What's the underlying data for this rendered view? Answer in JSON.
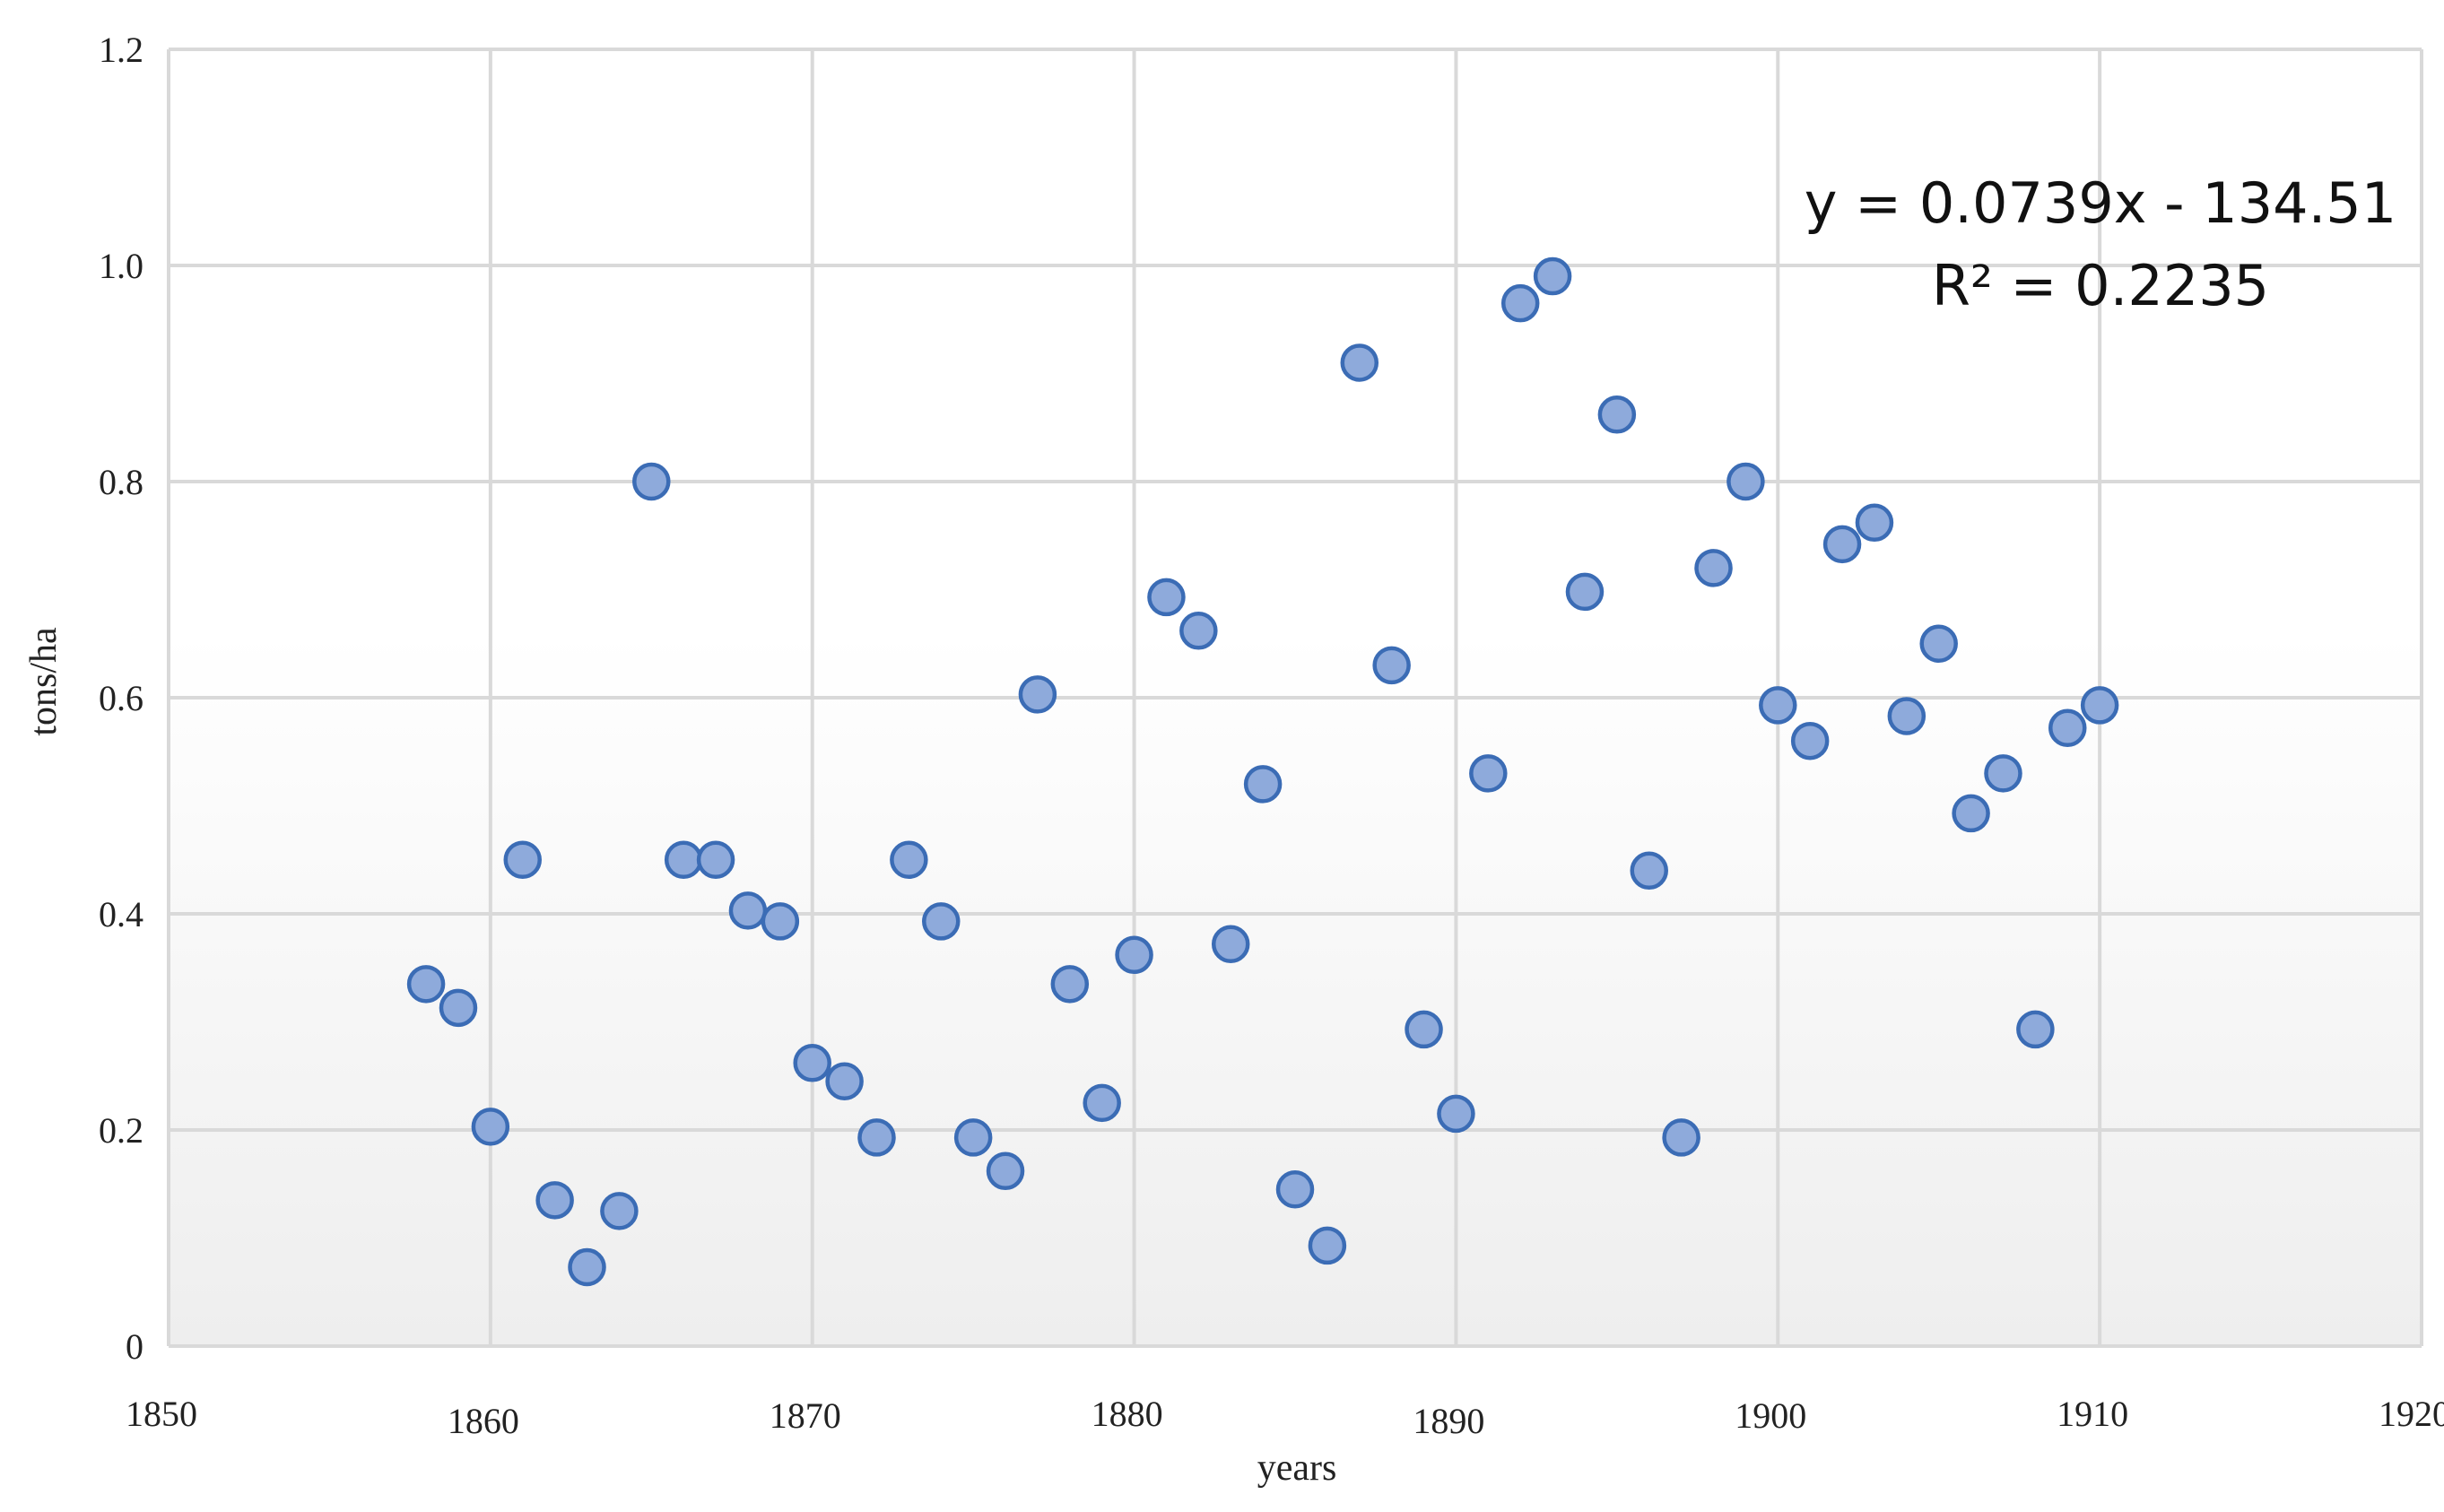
{
  "chart_data": {
    "type": "scatter",
    "xlabel": "years",
    "ylabel": "tons/ha",
    "xlim": [
      1850,
      1920
    ],
    "ylim": [
      0,
      1.2
    ],
    "x_ticks": [
      "1850",
      "1860",
      "1870",
      "1880",
      "1890",
      "1900",
      "1910",
      "1920"
    ],
    "y_ticks": [
      "0",
      "0.2",
      "0.4",
      "0.6",
      "0.8",
      "1.0",
      "1.2"
    ],
    "grid": true,
    "points": [
      {
        "x": 1858,
        "y": 0.335
      },
      {
        "x": 1859,
        "y": 0.313
      },
      {
        "x": 1860,
        "y": 0.203
      },
      {
        "x": 1861,
        "y": 0.45
      },
      {
        "x": 1862,
        "y": 0.135
      },
      {
        "x": 1863,
        "y": 0.073
      },
      {
        "x": 1864,
        "y": 0.125
      },
      {
        "x": 1865,
        "y": 0.8
      },
      {
        "x": 1866,
        "y": 0.45
      },
      {
        "x": 1867,
        "y": 0.45
      },
      {
        "x": 1868,
        "y": 0.403
      },
      {
        "x": 1869,
        "y": 0.393
      },
      {
        "x": 1870,
        "y": 0.262
      },
      {
        "x": 1871,
        "y": 0.245
      },
      {
        "x": 1872,
        "y": 0.193
      },
      {
        "x": 1873,
        "y": 0.45
      },
      {
        "x": 1874,
        "y": 0.393
      },
      {
        "x": 1875,
        "y": 0.193
      },
      {
        "x": 1876,
        "y": 0.162
      },
      {
        "x": 1877,
        "y": 0.603
      },
      {
        "x": 1878,
        "y": 0.335
      },
      {
        "x": 1879,
        "y": 0.225
      },
      {
        "x": 1880,
        "y": 0.362
      },
      {
        "x": 1881,
        "y": 0.693
      },
      {
        "x": 1882,
        "y": 0.662
      },
      {
        "x": 1883,
        "y": 0.372
      },
      {
        "x": 1884,
        "y": 0.52
      },
      {
        "x": 1885,
        "y": 0.145
      },
      {
        "x": 1886,
        "y": 0.093
      },
      {
        "x": 1887,
        "y": 0.91
      },
      {
        "x": 1888,
        "y": 0.63
      },
      {
        "x": 1889,
        "y": 0.293
      },
      {
        "x": 1890,
        "y": 0.215
      },
      {
        "x": 1891,
        "y": 0.53
      },
      {
        "x": 1892,
        "y": 0.965
      },
      {
        "x": 1893,
        "y": 0.99
      },
      {
        "x": 1894,
        "y": 0.698
      },
      {
        "x": 1895,
        "y": 0.862
      },
      {
        "x": 1896,
        "y": 0.44
      },
      {
        "x": 1897,
        "y": 0.193
      },
      {
        "x": 1898,
        "y": 0.72
      },
      {
        "x": 1899,
        "y": 0.8
      },
      {
        "x": 1900,
        "y": 0.593
      },
      {
        "x": 1901,
        "y": 0.56
      },
      {
        "x": 1902,
        "y": 0.742
      },
      {
        "x": 1903,
        "y": 0.762
      },
      {
        "x": 1904,
        "y": 0.583
      },
      {
        "x": 1905,
        "y": 0.65
      },
      {
        "x": 1906,
        "y": 0.493
      },
      {
        "x": 1907,
        "y": 0.53
      },
      {
        "x": 1908,
        "y": 0.293
      },
      {
        "x": 1909,
        "y": 0.572
      },
      {
        "x": 1910,
        "y": 0.593
      }
    ],
    "trendline": {
      "slope": 0.0739,
      "intercept": -134.51,
      "x_range": [
        1858,
        1910
      ],
      "equation": "y = 0.0739x - 134.51",
      "r_squared": "R² = 0.2235"
    },
    "colors": {
      "marker_fill": "#8eaadb",
      "marker_stroke": "#3b6cb5",
      "trendline": "#3a73b0",
      "grid": "#d9d9d9",
      "plot_bg_top": "#ffffff",
      "plot_bg_bottom": "#eeeeee"
    }
  }
}
